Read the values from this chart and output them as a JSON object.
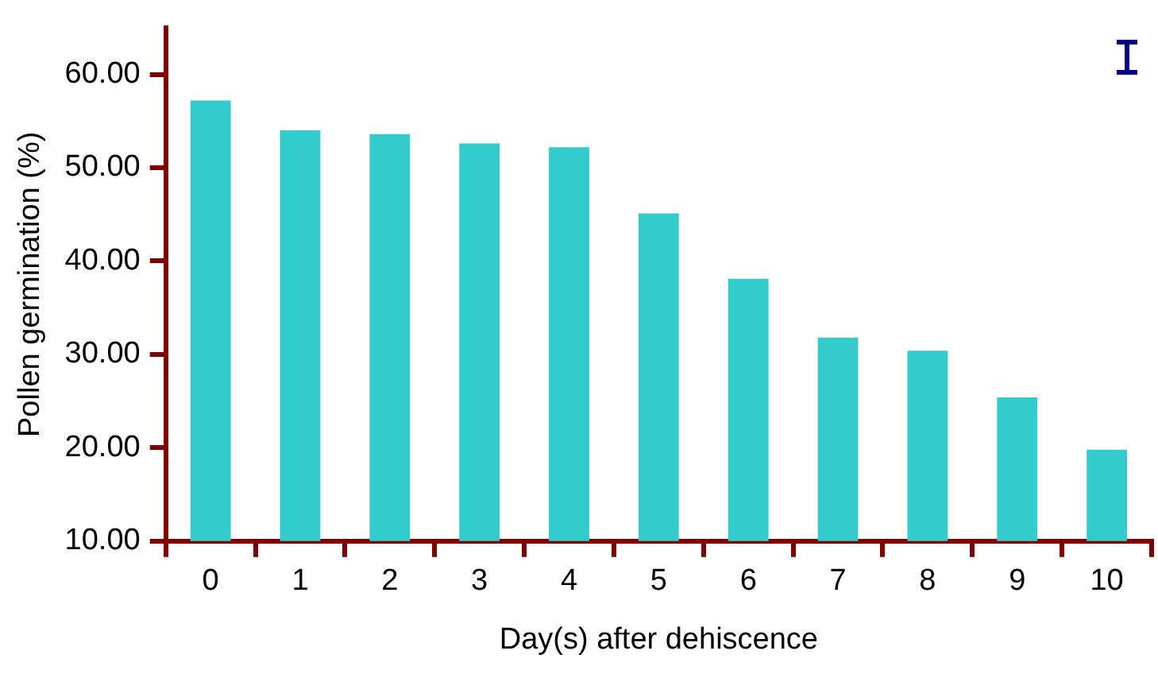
{
  "chart_data": {
    "type": "bar",
    "xlabel": "Day(s) after dehiscence",
    "ylabel": "Pollen germination (%)",
    "categories": [
      "0",
      "1",
      "2",
      "3",
      "4",
      "5",
      "6",
      "7",
      "8",
      "9",
      "10"
    ],
    "values": [
      57.2,
      54.0,
      53.6,
      52.6,
      52.2,
      45.1,
      38.1,
      31.8,
      30.4,
      25.4,
      19.8
    ],
    "color": "#33cccc",
    "ylim": [
      10,
      65
    ],
    "yticks": [
      {
        "value": 10,
        "label": "10.00"
      },
      {
        "value": 20,
        "label": "20.00"
      },
      {
        "value": 30,
        "label": "30.00"
      },
      {
        "value": 40,
        "label": "40.00"
      },
      {
        "value": 50,
        "label": "50.00"
      },
      {
        "value": 60,
        "label": "60.00"
      }
    ],
    "grid": false,
    "legend": false
  }
}
